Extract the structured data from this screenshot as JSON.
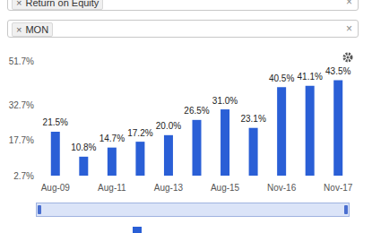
{
  "tags": [
    "Return on Equity",
    "MON"
  ],
  "remove_symbol": "×",
  "chart_data": {
    "type": "bar",
    "categories": [
      "Aug-09",
      null,
      "Aug-11",
      null,
      "Aug-13",
      null,
      "Aug-15",
      null,
      "Nov-16",
      null,
      "Nov-17"
    ],
    "values": [
      21.5,
      10.8,
      14.7,
      17.2,
      20.0,
      26.5,
      31.0,
      23.1,
      40.5,
      41.1,
      43.5
    ],
    "value_labels": [
      "21.5%",
      "10.8%",
      "14.7%",
      "17.2%",
      "20.0%",
      "26.5%",
      "31.0%",
      "23.1%",
      "40.5%",
      "41.1%",
      "43.5%"
    ],
    "color": "#2a5fd6",
    "ylim": [
      2.7,
      51.7
    ],
    "yticks": [
      {
        "value": 2.7,
        "label": "2.7%"
      },
      {
        "value": 17.7,
        "label": "17.7%"
      },
      {
        "value": 32.7,
        "label": "32.7%"
      },
      {
        "value": 51.7,
        "label": "51.7%"
      }
    ],
    "grid": false,
    "data_labels": true
  }
}
